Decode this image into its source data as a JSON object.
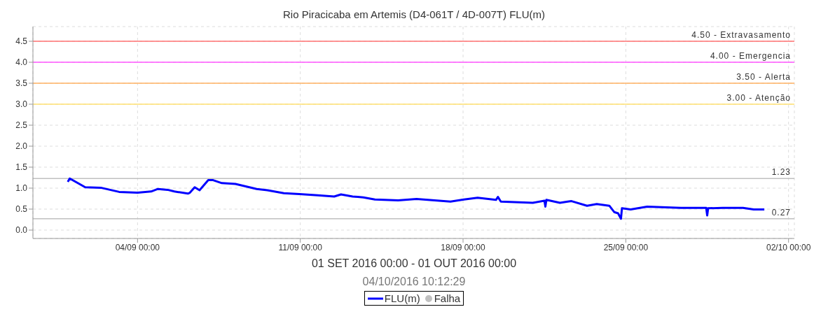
{
  "chart_data": {
    "type": "line",
    "title": "Rio Piracicaba em Artemis (D4-061T / 4D-007T) FLU(m)",
    "xlabel": "01 SET 2016 00:00 - 01 OUT 2016 00:00",
    "annotations": [
      "04/10/2016 10:12:29"
    ],
    "xlim": [
      "2016-08-30T12:00",
      "2016-10-02T06:00"
    ],
    "xticks": [
      {
        "value": "2016-09-04",
        "label": "04/09 00:00"
      },
      {
        "value": "2016-09-11",
        "label": "11/09 00:00"
      },
      {
        "value": "2016-09-18",
        "label": "18/09 00:00"
      },
      {
        "value": "2016-09-25",
        "label": "25/09 00:00"
      },
      {
        "value": "2016-10-02",
        "label": "02/10 00:00"
      }
    ],
    "ylim": [
      -0.2,
      4.85
    ],
    "yticks": [
      {
        "value": 0,
        "label": "0.0"
      },
      {
        "value": 0.5,
        "label": "0.5"
      },
      {
        "value": 1,
        "label": "1.0"
      },
      {
        "value": 1.5,
        "label": "1.5"
      },
      {
        "value": 2,
        "label": "2.0"
      },
      {
        "value": 2.5,
        "label": "2.5"
      },
      {
        "value": 3,
        "label": "3.0"
      },
      {
        "value": 3.5,
        "label": "3.5"
      },
      {
        "value": 4,
        "label": "4.0"
      },
      {
        "value": 4.5,
        "label": "4.5"
      }
    ],
    "grid": true,
    "legend": "bottom",
    "marker": "none",
    "line_style": "solid",
    "ref_lines": [
      {
        "axis": "y",
        "value": 4.5,
        "label": "4.50 - Extravasamento",
        "color": "#ff7070"
      },
      {
        "axis": "y",
        "value": 4.0,
        "label": "4.00 - Emergencia",
        "color": "#ff55ff"
      },
      {
        "axis": "y",
        "value": 3.5,
        "label": "3.50 - Alerta",
        "color": "#ffb060"
      },
      {
        "axis": "y",
        "value": 3.0,
        "label": "3.00 - Atenção",
        "color": "#ffe070"
      },
      {
        "axis": "y",
        "value": 1.23,
        "label": "1.23",
        "color": "#c0c0c0"
      },
      {
        "axis": "y",
        "value": 0.27,
        "label": "0.27",
        "color": "#c0c0c0"
      }
    ],
    "series": [
      {
        "name": "FLU(m)",
        "color": "#0000ff",
        "x": [
          "2016-09-01T00:00",
          "2016-09-01T02:00",
          "2016-09-01T18:00",
          "2016-09-02T10:00",
          "2016-09-03T05:00",
          "2016-09-04T00:00",
          "2016-09-04T14:00",
          "2016-09-04T21:00",
          "2016-09-05T07:00",
          "2016-09-05T14:00",
          "2016-09-06T04:00",
          "2016-09-06T06:00",
          "2016-09-06T11:00",
          "2016-09-06T16:00",
          "2016-09-07T01:00",
          "2016-09-07T06:00",
          "2016-09-07T15:00",
          "2016-09-08T05:00",
          "2016-09-09T03:00",
          "2016-09-09T14:00",
          "2016-09-10T07:00",
          "2016-09-10T23:00",
          "2016-09-11T18:00",
          "2016-09-12T11:00",
          "2016-09-12T18:00",
          "2016-09-13T06:00",
          "2016-09-13T17:00",
          "2016-09-14T05:00",
          "2016-09-15T05:00",
          "2016-09-16T00:00",
          "2016-09-17T11:00",
          "2016-09-18T01:00",
          "2016-09-18T15:00",
          "2016-09-19T10:00",
          "2016-09-19T12:00",
          "2016-09-19T15:00",
          "2016-09-21T00:00",
          "2016-09-21T12:00",
          "2016-09-21T13:00",
          "2016-09-21T14:00",
          "2016-09-22T04:00",
          "2016-09-22T12:00",
          "2016-09-22T16:00",
          "2016-09-23T08:00",
          "2016-09-23T18:00",
          "2016-09-24T07:00",
          "2016-09-24T12:00",
          "2016-09-24T16:00",
          "2016-09-24T19:00",
          "2016-09-24T20:00",
          "2016-09-25T05:00",
          "2016-09-25T22:00",
          "2016-09-27T09:00",
          "2016-09-28T11:00",
          "2016-09-28T12:00",
          "2016-09-28T13:00",
          "2016-09-29T04:00",
          "2016-09-30T01:00",
          "2016-09-30T12:00",
          "2016-09-30T23:00"
        ],
        "values": [
          1.15,
          1.23,
          1.02,
          1.01,
          0.91,
          0.89,
          0.92,
          0.98,
          0.96,
          0.92,
          0.87,
          0.89,
          1.02,
          0.95,
          1.19,
          1.19,
          1.12,
          1.1,
          0.98,
          0.95,
          0.88,
          0.86,
          0.83,
          0.8,
          0.85,
          0.8,
          0.78,
          0.73,
          0.71,
          0.74,
          0.68,
          0.73,
          0.77,
          0.72,
          0.79,
          0.68,
          0.65,
          0.7,
          0.56,
          0.72,
          0.65,
          0.68,
          0.69,
          0.58,
          0.62,
          0.58,
          0.43,
          0.4,
          0.27,
          0.52,
          0.49,
          0.56,
          0.53,
          0.53,
          0.35,
          0.52,
          0.53,
          0.53,
          0.49,
          0.49
        ]
      },
      {
        "name": "Falha",
        "type": "scatter",
        "color": "#c0c0c0"
      }
    ]
  }
}
